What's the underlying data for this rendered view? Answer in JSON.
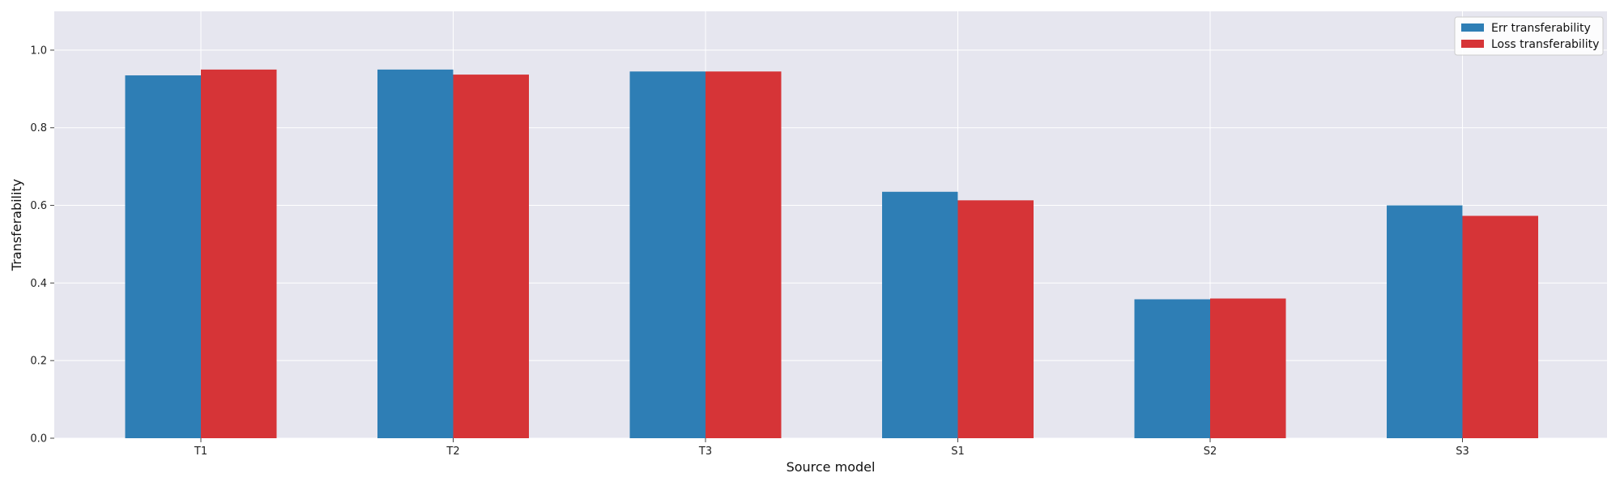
{
  "chart_data": {
    "type": "bar",
    "categories": [
      "T1",
      "T2",
      "T3",
      "S1",
      "S2",
      "S3"
    ],
    "series": [
      {
        "name": "Err transferability",
        "color": "#2e7eb5",
        "values": [
          0.935,
          0.95,
          0.945,
          0.635,
          0.358,
          0.6
        ]
      },
      {
        "name": "Loss transferability",
        "color": "#d63437",
        "values": [
          0.95,
          0.937,
          0.945,
          0.613,
          0.36,
          0.573
        ]
      }
    ],
    "title": "",
    "xlabel": "Source model",
    "ylabel": "Transferability",
    "ylim": [
      0,
      1.1
    ],
    "yticks": [
      0.0,
      0.2,
      0.4,
      0.6,
      0.8,
      1.0
    ],
    "ytick_labels": [
      "0.0",
      "0.2",
      "0.4",
      "0.6",
      "0.8",
      "1.0"
    ],
    "grid": true,
    "legend_position": "top-right",
    "background_color": "#e6e6ef",
    "grid_color": "#ffffff"
  }
}
